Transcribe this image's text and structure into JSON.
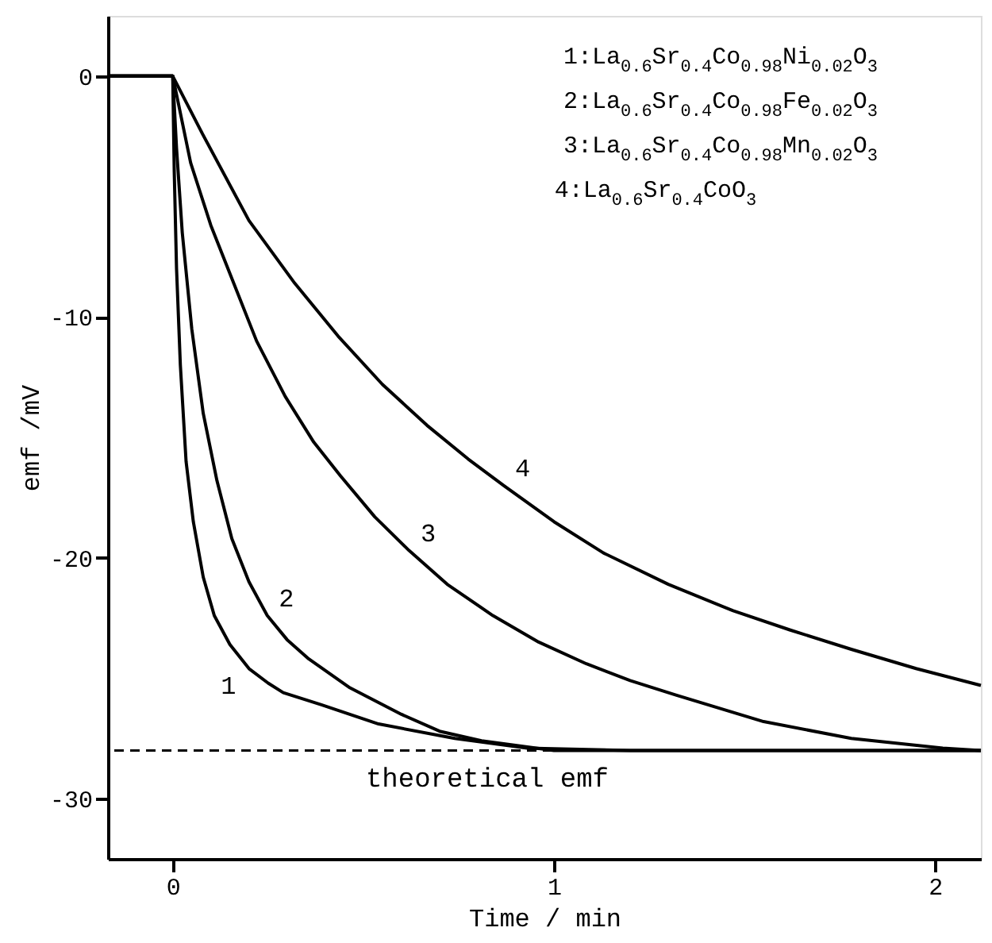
{
  "chart_data": {
    "type": "line",
    "xlabel": "Time / min",
    "ylabel": "emf /mV",
    "xlim": [
      -0.17,
      2.12
    ],
    "ylim": [
      -32.5,
      2.5
    ],
    "xticks": [
      0,
      1,
      2
    ],
    "yticks": [
      0,
      -10,
      -20,
      -30
    ],
    "grid": false,
    "line_style": "solid",
    "marker": "none",
    "series": [
      {
        "name": "1",
        "color": "#000000",
        "x": [
          -0.17,
          0,
          0.004,
          0.01,
          0.02,
          0.035,
          0.054,
          0.08,
          0.109,
          0.15,
          0.2,
          0.25,
          0.29,
          0.39,
          0.54,
          0.74,
          0.93,
          1.2,
          1.6,
          2.12
        ],
        "values": [
          0,
          0,
          -4,
          -8,
          -12,
          -16,
          -18.5,
          -20.8,
          -22.4,
          -23.6,
          -24.6,
          -25.2,
          -25.6,
          -26.1,
          -26.9,
          -27.5,
          -27.9,
          -28,
          -28,
          -28
        ]
      },
      {
        "name": "2",
        "color": "#000000",
        "x": [
          -0.17,
          0,
          0.01,
          0.025,
          0.05,
          0.08,
          0.116,
          0.155,
          0.2,
          0.248,
          0.3,
          0.357,
          0.465,
          0.6,
          0.7,
          0.81,
          1.0,
          1.5,
          2.12
        ],
        "values": [
          0,
          0,
          -3,
          -6.5,
          -10.5,
          -14,
          -16.8,
          -19.2,
          -21,
          -22.4,
          -23.4,
          -24.2,
          -25.4,
          -26.5,
          -27.2,
          -27.6,
          -28,
          -28,
          -28
        ]
      },
      {
        "name": "3",
        "color": "#000000",
        "x": [
          -0.17,
          0,
          0.047,
          0.1,
          0.155,
          0.22,
          0.295,
          0.37,
          0.44,
          0.53,
          0.62,
          0.72,
          0.84,
          0.96,
          1.085,
          1.2,
          1.32,
          1.55,
          1.78,
          2.02,
          2.12
        ],
        "values": [
          0,
          0,
          -3.6,
          -6.2,
          -8.4,
          -11,
          -13.3,
          -15.2,
          -16.6,
          -18.3,
          -19.7,
          -21.1,
          -22.4,
          -23.5,
          -24.4,
          -25.1,
          -25.7,
          -26.8,
          -27.5,
          -27.9,
          -28
        ]
      },
      {
        "name": "4",
        "color": "#000000",
        "x": [
          -0.17,
          0,
          0.078,
          0.2,
          0.32,
          0.434,
          0.55,
          0.667,
          0.775,
          0.868,
          1.0,
          1.13,
          1.3,
          1.47,
          1.62,
          1.78,
          1.95,
          2.12
        ],
        "values": [
          0,
          0,
          -2.4,
          -6,
          -8.6,
          -10.8,
          -12.8,
          -14.5,
          -15.9,
          -17,
          -18.5,
          -19.8,
          -21.1,
          -22.2,
          -23,
          -23.8,
          -24.6,
          -25.3
        ]
      }
    ],
    "ref_lines": [
      {
        "axis": "y",
        "value": -28,
        "label": "theoretical emf",
        "line_style": "dashed",
        "color": "#000000"
      }
    ],
    "annotations": [
      "1:La$_{0.6}$Sr$_{0.4}$Co$_{0.98}$Ni$_{0.02}$O$_{3}$",
      "2:La$_{0.6}$Sr$_{0.4}$Co$_{0.98}$Fe$_{0.02}$O$_{3}$",
      "3:La$_{0.6}$Sr$_{0.4}$Co$_{0.98}$Mn$_{0.02}$O$_{3}$",
      "4:La$_{0.6}$Sr$_{0.4}$CoO$_{3}$"
    ]
  }
}
